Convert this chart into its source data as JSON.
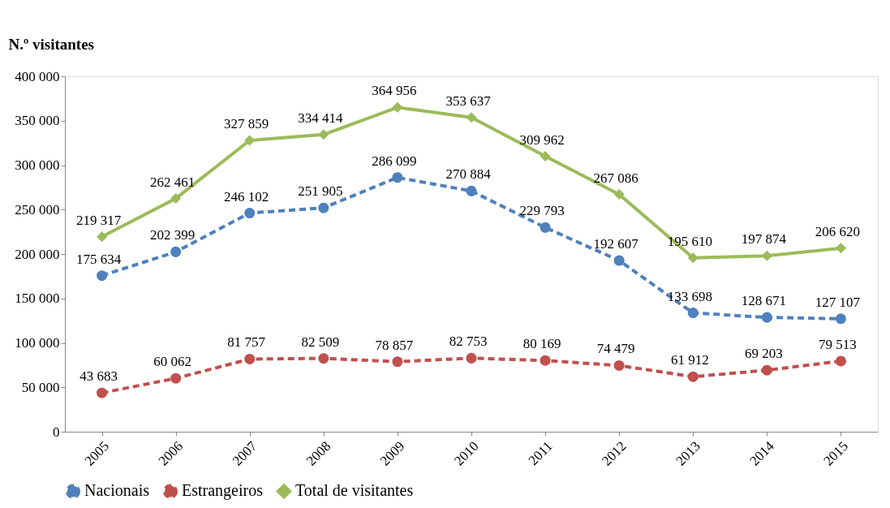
{
  "chart_data": {
    "type": "line",
    "ylabel": "N.º visitantes",
    "categories": [
      "2005",
      "2006",
      "2007",
      "2008",
      "2009",
      "2010",
      "2011",
      "2012",
      "2013",
      "2014",
      "2015"
    ],
    "ylim": [
      0,
      400000
    ],
    "yticks": [
      {
        "value": 0,
        "label": "0"
      },
      {
        "value": 50000,
        "label": "50 000"
      },
      {
        "value": 100000,
        "label": "100 000"
      },
      {
        "value": 150000,
        "label": "150 000"
      },
      {
        "value": 200000,
        "label": "200 000"
      },
      {
        "value": 250000,
        "label": "250 000"
      },
      {
        "value": 300000,
        "label": "300 000"
      },
      {
        "value": 350000,
        "label": "350 000"
      },
      {
        "value": 400000,
        "label": "400 000"
      }
    ],
    "grid": false,
    "legend": "bottom",
    "series": [
      {
        "name": "Nacionais",
        "color": "#4f81bd",
        "marker": "circle",
        "line_style": "dashed",
        "values": [
          175634,
          202399,
          246102,
          251905,
          286099,
          270884,
          229793,
          192607,
          133698,
          128671,
          127107
        ],
        "value_labels": [
          "175 634",
          "202 399",
          "246 102",
          "251 905",
          "286 099",
          "270 884",
          "229 793",
          "192 607",
          "133 698",
          "128 671",
          "127 107"
        ]
      },
      {
        "name": "Estrangeiros",
        "color": "#c0504d",
        "marker": "circle",
        "line_style": "dashed",
        "values": [
          43683,
          60062,
          81757,
          82509,
          78857,
          82753,
          80169,
          74479,
          61912,
          69203,
          79513
        ],
        "value_labels": [
          "43 683",
          "60 062",
          "81 757",
          "82 509",
          "78 857",
          "82 753",
          "80 169",
          "74 479",
          "61 912",
          "69 203",
          "79 513"
        ]
      },
      {
        "name": "Total de visitantes",
        "color": "#9bbb59",
        "marker": "diamond",
        "line_style": "solid",
        "values": [
          219317,
          262461,
          327859,
          334414,
          364956,
          353637,
          309962,
          267086,
          195610,
          197874,
          206620
        ],
        "value_labels": [
          "219 317",
          "262 461",
          "327 859",
          "334 414",
          "364 956",
          "353 637",
          "309 962",
          "267 086",
          "195 610",
          "197 874",
          "206 620"
        ]
      }
    ]
  }
}
